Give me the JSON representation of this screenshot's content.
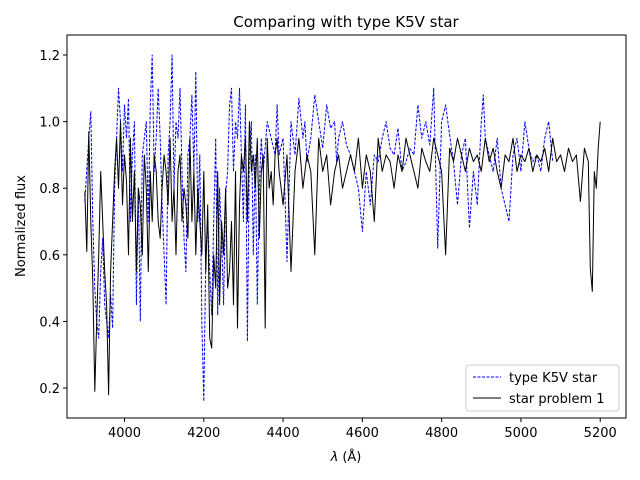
{
  "chart_data": {
    "type": "line",
    "title": "Comparing with type K5V star",
    "xlabel": "λ (Å)",
    "xlabel_parts": {
      "symbol": "λ",
      "unit": "(Å)"
    },
    "ylabel": "Normalized flux",
    "xlim": [
      3855,
      5265
    ],
    "ylim": [
      0.11,
      1.26
    ],
    "x_ticks": [
      4000,
      4200,
      4400,
      4600,
      4800,
      5000,
      5200
    ],
    "x_tick_labels": [
      "4000",
      "4200",
      "4400",
      "4600",
      "4800",
      "5000",
      "5200"
    ],
    "y_ticks": [
      0.2,
      0.4,
      0.6,
      0.8,
      1.0,
      1.2
    ],
    "y_tick_labels": [
      "0.2",
      "0.4",
      "0.6",
      "0.8",
      "1.0",
      "1.2"
    ],
    "grid": false,
    "legend_position": "lower-right",
    "series": [
      {
        "name": "type K5V star",
        "color": "#0000ff",
        "style": "dashed",
        "x": [
          3900,
          3910,
          3915,
          3920,
          3925,
          3930,
          3935,
          3940,
          3945,
          3950,
          3955,
          3960,
          3965,
          3970,
          3975,
          3980,
          3985,
          3990,
          3995,
          4000,
          4005,
          4010,
          4015,
          4020,
          4025,
          4030,
          4035,
          4040,
          4045,
          4050,
          4055,
          4060,
          4065,
          4070,
          4075,
          4080,
          4085,
          4090,
          4095,
          4100,
          4105,
          4110,
          4115,
          4120,
          4125,
          4130,
          4135,
          4140,
          4145,
          4150,
          4155,
          4160,
          4165,
          4170,
          4175,
          4180,
          4185,
          4190,
          4195,
          4200,
          4205,
          4210,
          4215,
          4220,
          4225,
          4230,
          4235,
          4240,
          4245,
          4250,
          4255,
          4260,
          4265,
          4270,
          4275,
          4280,
          4285,
          4290,
          4295,
          4300,
          4305,
          4310,
          4315,
          4320,
          4325,
          4330,
          4335,
          4340,
          4345,
          4350,
          4360,
          4370,
          4380,
          4385,
          4390,
          4400,
          4410,
          4420,
          4430,
          4440,
          4450,
          4455,
          4460,
          4470,
          4480,
          4490,
          4500,
          4510,
          4520,
          4530,
          4535,
          4540,
          4550,
          4560,
          4570,
          4580,
          4590,
          4600,
          4610,
          4620,
          4630,
          4640,
          4650,
          4660,
          4670,
          4680,
          4690,
          4700,
          4710,
          4720,
          4730,
          4740,
          4750,
          4760,
          4770,
          4780,
          4790,
          4800,
          4810,
          4820,
          4830,
          4840,
          4850,
          4860,
          4870,
          4880,
          4890,
          4900,
          4905,
          4910,
          4920,
          4930,
          4940,
          4950,
          4960,
          4970,
          4980,
          4990,
          5000,
          5010,
          5020,
          5030,
          5040,
          5050,
          5060,
          5070,
          5080
        ],
        "y": [
          0.76,
          0.95,
          1.03,
          0.7,
          0.5,
          0.4,
          0.35,
          0.55,
          0.65,
          0.45,
          0.4,
          0.35,
          0.48,
          0.38,
          0.8,
          0.95,
          1.1,
          1.0,
          0.85,
          1.05,
          0.95,
          1.07,
          0.7,
          0.9,
          1.0,
          0.45,
          0.8,
          0.4,
          0.9,
          0.95,
          1.0,
          0.7,
          1.05,
          1.2,
          0.85,
          0.95,
          1.1,
          0.95,
          0.75,
          0.6,
          0.45,
          0.9,
          1.0,
          1.2,
          0.8,
          1.0,
          0.95,
          1.1,
          0.85,
          0.65,
          0.55,
          0.9,
          0.95,
          1.08,
          0.85,
          1.15,
          0.7,
          0.9,
          0.4,
          0.16,
          0.6,
          0.7,
          0.55,
          0.42,
          0.7,
          0.95,
          0.42,
          0.8,
          0.65,
          0.45,
          0.78,
          0.85,
          1.05,
          1.1,
          0.85,
          1.0,
          0.95,
          1.1,
          0.9,
          0.7,
          1.05,
          0.34,
          0.9,
          1.0,
          0.6,
          0.9,
          0.45,
          0.8,
          0.95,
          0.85,
          1.0,
          0.95,
          0.9,
          1.05,
          0.9,
          0.95,
          0.58,
          1.0,
          0.9,
          1.07,
          0.95,
          1.0,
          0.88,
          0.95,
          1.08,
          1.0,
          0.92,
          1.05,
          0.98,
          1.0,
          0.88,
          0.95,
          1.0,
          0.93,
          0.9,
          0.85,
          0.8,
          0.67,
          0.85,
          0.75,
          0.9,
          0.88,
          0.95,
          1.0,
          0.92,
          0.9,
          0.98,
          0.85,
          0.88,
          0.92,
          0.9,
          1.05,
          0.95,
          1.0,
          0.93,
          1.1,
          0.62,
          1.0,
          1.05,
          0.96,
          0.88,
          0.75,
          0.9,
          0.95,
          0.68,
          0.85,
          0.75,
          1.0,
          1.08,
          0.95,
          0.9,
          0.85,
          0.95,
          0.8,
          0.75,
          0.7,
          0.9,
          0.95,
          0.85,
          1.0,
          0.92,
          0.88,
          0.9,
          0.85,
          0.95,
          1.0,
          0.88
        ]
      },
      {
        "name": "star problem 1",
        "color": "#000000",
        "style": "solid",
        "x": [
          3900,
          3905,
          3910,
          3915,
          3920,
          3925,
          3930,
          3935,
          3940,
          3945,
          3950,
          3955,
          3960,
          3965,
          3970,
          3975,
          3980,
          3985,
          3990,
          3995,
          4000,
          4005,
          4010,
          4015,
          4020,
          4025,
          4030,
          4035,
          4040,
          4045,
          4050,
          4055,
          4060,
          4065,
          4070,
          4075,
          4080,
          4085,
          4090,
          4095,
          4100,
          4105,
          4110,
          4115,
          4120,
          4125,
          4130,
          4135,
          4140,
          4145,
          4150,
          4155,
          4160,
          4165,
          4170,
          4175,
          4180,
          4185,
          4190,
          4195,
          4200,
          4205,
          4210,
          4215,
          4220,
          4225,
          4230,
          4235,
          4240,
          4245,
          4250,
          4255,
          4260,
          4265,
          4270,
          4275,
          4280,
          4285,
          4290,
          4295,
          4300,
          4305,
          4310,
          4315,
          4320,
          4325,
          4330,
          4335,
          4340,
          4345,
          4350,
          4355,
          4360,
          4365,
          4370,
          4375,
          4380,
          4385,
          4390,
          4400,
          4410,
          4420,
          4430,
          4440,
          4450,
          4460,
          4470,
          4480,
          4490,
          4500,
          4510,
          4520,
          4530,
          4540,
          4550,
          4560,
          4570,
          4580,
          4590,
          4600,
          4610,
          4620,
          4630,
          4640,
          4650,
          4660,
          4670,
          4680,
          4690,
          4700,
          4710,
          4720,
          4730,
          4740,
          4750,
          4760,
          4770,
          4780,
          4790,
          4800,
          4810,
          4820,
          4830,
          4840,
          4850,
          4860,
          4870,
          4880,
          4890,
          4900,
          4910,
          4920,
          4930,
          4940,
          4950,
          4960,
          4970,
          4980,
          4990,
          5000,
          5010,
          5020,
          5030,
          5040,
          5050,
          5060,
          5070,
          5080,
          5090,
          5100,
          5110,
          5120,
          5130,
          5140,
          5150,
          5160,
          5170,
          5175,
          5180,
          5185,
          5190,
          5195,
          5200
        ],
        "y": [
          0.79,
          0.61,
          0.97,
          0.7,
          0.52,
          0.19,
          0.4,
          0.6,
          0.85,
          0.7,
          0.55,
          0.45,
          0.18,
          0.55,
          0.7,
          0.85,
          0.95,
          0.8,
          1.0,
          0.75,
          0.9,
          0.82,
          0.6,
          0.95,
          0.7,
          0.85,
          0.55,
          0.8,
          0.75,
          0.6,
          0.9,
          0.8,
          0.55,
          0.85,
          0.7,
          0.9,
          0.85,
          0.7,
          0.65,
          0.8,
          0.9,
          0.85,
          0.75,
          0.95,
          0.7,
          0.8,
          0.6,
          0.85,
          0.9,
          0.7,
          0.8,
          0.75,
          0.65,
          0.95,
          0.7,
          0.85,
          0.6,
          0.8,
          0.7,
          0.6,
          0.85,
          0.55,
          0.75,
          0.35,
          0.32,
          0.6,
          0.5,
          0.85,
          0.45,
          0.7,
          0.6,
          0.8,
          0.5,
          0.55,
          0.7,
          0.45,
          0.85,
          0.38,
          0.75,
          0.9,
          0.85,
          0.95,
          0.7,
          1.0,
          0.85,
          0.9,
          0.8,
          0.95,
          0.65,
          0.85,
          0.9,
          0.38,
          0.95,
          0.8,
          0.85,
          0.75,
          0.9,
          0.95,
          0.85,
          0.75,
          0.9,
          0.55,
          0.85,
          0.95,
          0.8,
          0.9,
          0.85,
          0.6,
          0.95,
          0.85,
          0.9,
          0.75,
          0.85,
          0.9,
          0.8,
          0.85,
          0.9,
          0.85,
          0.95,
          0.8,
          0.9,
          0.85,
          0.7,
          0.95,
          0.85,
          0.9,
          0.88,
          0.8,
          0.9,
          0.85,
          0.95,
          0.9,
          0.85,
          0.8,
          0.92,
          0.88,
          0.85,
          0.95,
          0.9,
          0.85,
          0.6,
          0.92,
          0.88,
          0.95,
          0.9,
          0.85,
          0.92,
          0.88,
          0.9,
          0.85,
          0.95,
          0.88,
          0.92,
          0.85,
          0.8,
          0.9,
          0.88,
          0.95,
          0.85,
          0.9,
          0.88,
          0.92,
          0.85,
          0.9,
          0.88,
          0.92,
          0.85,
          0.95,
          0.88,
          0.9,
          0.85,
          0.92,
          0.88,
          0.9,
          0.76,
          0.92,
          0.88,
          0.56,
          0.49,
          0.85,
          0.8,
          0.92,
          1.0
        ]
      }
    ]
  }
}
